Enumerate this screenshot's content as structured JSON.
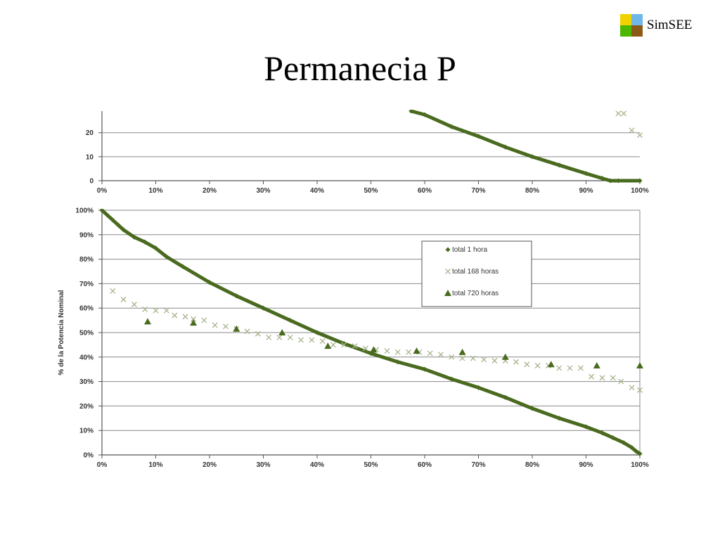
{
  "header": {
    "title": "Permanecia P",
    "logo": {
      "text": "SimSEE",
      "colors": [
        "#f2d100",
        "#6fb6e9",
        "#4db700",
        "#8b5a17"
      ]
    }
  },
  "chart_data": [
    {
      "type": "line",
      "title": "",
      "xlabel": "",
      "ylabel": "",
      "xlim": [
        0,
        100
      ],
      "ylim": [
        0,
        29
      ],
      "x_ticks": [
        "0%",
        "10%",
        "20%",
        "30%",
        "40%",
        "50%",
        "60%",
        "70%",
        "80%",
        "90%",
        "100%"
      ],
      "y_ticks": [
        "0",
        "10",
        "20"
      ],
      "grid": true,
      "series": [
        {
          "marker": "diamond",
          "color": "#4a6b1f",
          "x": [
            57.5,
            60,
            65,
            70,
            75,
            80,
            85,
            90,
            93,
            94.5,
            96,
            100
          ],
          "y": [
            29,
            27.5,
            22.5,
            18.5,
            14,
            10,
            6.5,
            3,
            1,
            0,
            0,
            0
          ]
        },
        {
          "marker": "x",
          "color": "#a7b48c",
          "x": [
            96,
            97,
            98.5,
            100
          ],
          "y": [
            28,
            28,
            21,
            19
          ]
        }
      ]
    },
    {
      "type": "line",
      "title": "",
      "xlabel": "",
      "ylabel": "% de la Potencia Nominal",
      "xlim": [
        0,
        100
      ],
      "ylim": [
        0,
        100
      ],
      "x_ticks": [
        "0%",
        "10%",
        "20%",
        "30%",
        "40%",
        "50%",
        "60%",
        "70%",
        "80%",
        "90%",
        "100%"
      ],
      "y_ticks": [
        "0%",
        "10%",
        "20%",
        "30%",
        "40%",
        "50%",
        "60%",
        "70%",
        "80%",
        "90%",
        "100%"
      ],
      "grid": true,
      "legend_position": "top-right",
      "series": [
        {
          "name": "total 1 hora",
          "marker": "diamond",
          "color": "#4a6b1f",
          "x": [
            0,
            1,
            2,
            3,
            4,
            6,
            8,
            10,
            12,
            15,
            20,
            25,
            30,
            35,
            40,
            45,
            50,
            55,
            60,
            65,
            70,
            75,
            80,
            85,
            90,
            93,
            95,
            97,
            98.5,
            99.3,
            100
          ],
          "y": [
            100,
            98,
            96,
            94,
            92,
            89,
            87,
            84.5,
            81,
            77,
            70.5,
            65,
            60,
            55,
            50,
            45.5,
            41.5,
            38,
            35,
            31,
            27.5,
            23.5,
            19,
            15,
            11.5,
            9,
            7,
            5,
            3,
            1.5,
            0.5
          ]
        },
        {
          "name": "total 168 horas",
          "marker": "x",
          "color": "#a7b48c",
          "x": [
            2,
            4,
            6,
            8,
            10,
            12,
            13.5,
            15.5,
            17,
            19,
            21,
            23,
            25,
            27,
            29,
            31,
            33,
            35,
            37,
            39,
            41,
            43,
            45,
            47,
            49,
            51,
            53,
            55,
            57,
            59,
            61,
            63,
            65,
            67,
            69,
            71,
            73,
            75,
            77,
            79,
            81,
            83,
            85,
            87,
            89,
            91,
            93,
            95,
            96.5,
            98.5,
            100
          ],
          "y": [
            67,
            63.5,
            61.5,
            59.5,
            59,
            59,
            57,
            56.5,
            55.5,
            55,
            53,
            52.5,
            51.5,
            50.5,
            49.5,
            48,
            48,
            48,
            47,
            47,
            46.5,
            45,
            45,
            44.5,
            43.5,
            43,
            42.5,
            42,
            42,
            42,
            41.5,
            41,
            40,
            39.5,
            39.5,
            39,
            38.5,
            38.5,
            38,
            37,
            36.5,
            36.5,
            35.5,
            35.5,
            35.5,
            32,
            31.5,
            31.5,
            30,
            27.5,
            26.5
          ]
        },
        {
          "name": "total 720 horas",
          "marker": "triangle",
          "color": "#4a6b1f",
          "x": [
            8.5,
            17,
            25,
            33.5,
            42,
            50.5,
            58.5,
            67,
            75,
            83.5,
            92,
            100
          ],
          "y": [
            54.5,
            54,
            51.5,
            50,
            44.5,
            43,
            42.5,
            42,
            40,
            37,
            36.5,
            36.5
          ]
        }
      ]
    }
  ]
}
